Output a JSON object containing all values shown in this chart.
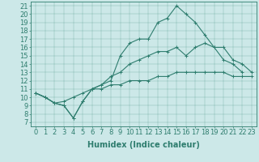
{
  "xlabel": "Humidex (Indice chaleur)",
  "bg_color": "#cce8e8",
  "line_color": "#2e7d6e",
  "xlim": [
    -0.5,
    23.5
  ],
  "ylim": [
    6.5,
    21.5
  ],
  "yticks": [
    7,
    8,
    9,
    10,
    11,
    12,
    13,
    14,
    15,
    16,
    17,
    18,
    19,
    20,
    21
  ],
  "xticks": [
    0,
    1,
    2,
    3,
    4,
    5,
    6,
    7,
    8,
    9,
    10,
    11,
    12,
    13,
    14,
    15,
    16,
    17,
    18,
    19,
    20,
    21,
    22,
    23
  ],
  "line1_x": [
    0,
    1,
    2,
    3,
    4,
    5,
    6,
    7,
    8,
    9,
    10,
    11,
    12,
    13,
    14,
    15,
    16,
    17,
    18,
    19,
    20,
    21,
    22
  ],
  "line1_y": [
    10.5,
    10,
    9.3,
    9,
    7.5,
    9.5,
    11,
    11.5,
    12,
    15,
    16.5,
    17,
    17,
    19,
    19.5,
    21,
    20,
    19,
    17.5,
    16,
    14.5,
    14,
    13
  ],
  "line2_x": [
    0,
    1,
    2,
    3,
    4,
    5,
    6,
    7,
    8,
    9,
    10,
    11,
    12,
    13,
    14,
    15,
    16,
    17,
    18,
    19,
    20,
    21,
    22,
    23
  ],
  "line2_y": [
    10.5,
    10,
    9.3,
    9,
    7.5,
    9.5,
    11,
    11.5,
    12.5,
    13,
    14,
    14.5,
    15,
    15.5,
    15.5,
    16,
    15,
    16,
    16.5,
    16,
    16,
    14.5,
    14,
    13
  ],
  "line3_x": [
    0,
    1,
    2,
    3,
    4,
    5,
    6,
    7,
    8,
    9,
    10,
    11,
    12,
    13,
    14,
    15,
    16,
    17,
    18,
    19,
    20,
    21,
    22,
    23
  ],
  "line3_y": [
    10.5,
    10,
    9.3,
    9.5,
    10,
    10.5,
    11,
    11,
    11.5,
    11.5,
    12,
    12,
    12,
    12.5,
    12.5,
    13,
    13,
    13,
    13,
    13,
    13,
    12.5,
    12.5,
    12.5
  ],
  "font_size_xlabel": 7,
  "font_size_tick": 6
}
